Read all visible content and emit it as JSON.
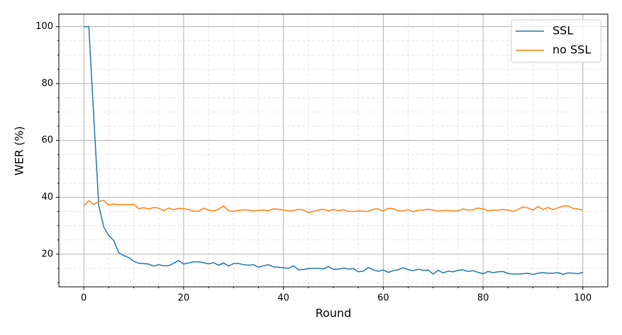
{
  "chart_data": {
    "type": "line",
    "xlabel": "Round",
    "ylabel": "WER (%)",
    "x": [
      0,
      1,
      2,
      3,
      4,
      5,
      6,
      7,
      8,
      9,
      10,
      11,
      12,
      13,
      14,
      15,
      16,
      17,
      18,
      19,
      20,
      21,
      22,
      23,
      24,
      25,
      26,
      27,
      28,
      29,
      30,
      31,
      32,
      33,
      34,
      35,
      36,
      37,
      38,
      39,
      40,
      41,
      42,
      43,
      44,
      45,
      46,
      47,
      48,
      49,
      50,
      51,
      52,
      53,
      54,
      55,
      56,
      57,
      58,
      59,
      60,
      61,
      62,
      63,
      64,
      65,
      66,
      67,
      68,
      69,
      70,
      71,
      72,
      73,
      74,
      75,
      76,
      77,
      78,
      79,
      80,
      81,
      82,
      83,
      84,
      85,
      86,
      87,
      88,
      89,
      90,
      91,
      92,
      93,
      94,
      95,
      96,
      97,
      98,
      99,
      100
    ],
    "series": [
      {
        "name": "SSL",
        "color": "#1f77b4",
        "values": [
          100,
          100,
          68,
          37,
          29.5,
          26.5,
          24.8,
          20.5,
          19.5,
          18.8,
          17.5,
          16.8,
          16.7,
          16.5,
          15.8,
          16.3,
          15.9,
          15.9,
          16.8,
          17.8,
          16.5,
          16.9,
          17.3,
          17.3,
          17.0,
          16.6,
          17.0,
          16.1,
          16.9,
          15.8,
          16.7,
          16.7,
          16.3,
          16.1,
          16.3,
          15.4,
          15.9,
          16.3,
          15.5,
          15.4,
          15.2,
          15.0,
          15.9,
          14.5,
          14.6,
          14.9,
          15.0,
          15.0,
          14.8,
          15.6,
          14.7,
          14.7,
          15.1,
          14.8,
          14.9,
          13.8,
          14.0,
          15.3,
          14.5,
          14.0,
          14.4,
          13.6,
          14.2,
          14.5,
          15.2,
          14.5,
          14.2,
          14.7,
          14.3,
          14.4,
          13.0,
          14.3,
          13.4,
          14.0,
          13.8,
          14.3,
          14.5,
          13.9,
          14.2,
          13.6,
          13.1,
          13.9,
          13.5,
          13.8,
          13.9,
          13.2,
          13.0,
          13.0,
          13.1,
          13.3,
          12.8,
          13.3,
          13.5,
          13.3,
          13.3,
          13.5,
          12.9,
          13.4,
          13.3,
          13.1,
          13.6
        ]
      },
      {
        "name": "no SSL",
        "color": "#ff7f0e",
        "values": [
          37,
          38.8,
          37.5,
          38.5,
          38.9,
          37.2,
          37.6,
          37.4,
          37.4,
          37.5,
          37.5,
          36.0,
          36.3,
          35.9,
          36.4,
          36.2,
          35.3,
          36.2,
          35.6,
          36.1,
          36.0,
          35.7,
          35.1,
          35.1,
          36.1,
          35.5,
          35.2,
          35.8,
          36.9,
          35.3,
          35.0,
          35.4,
          35.6,
          35.5,
          35.2,
          35.4,
          35.5,
          35.3,
          35.9,
          35.8,
          35.5,
          35.2,
          35.3,
          35.8,
          35.5,
          34.6,
          35.1,
          35.5,
          35.8,
          35.2,
          35.7,
          35.3,
          35.6,
          35.1,
          35.0,
          35.2,
          35.1,
          35.0,
          35.8,
          35.9,
          35.1,
          36.1,
          36.0,
          35.2,
          35.2,
          35.6,
          34.9,
          35.5,
          35.5,
          35.8,
          35.5,
          35.1,
          35.3,
          35.3,
          35.2,
          35.2,
          35.9,
          35.5,
          35.6,
          36.2,
          35.9,
          35.3,
          35.5,
          35.5,
          35.7,
          35.5,
          35.0,
          35.7,
          36.6,
          36.2,
          35.5,
          36.7,
          35.7,
          36.4,
          35.6,
          36.3,
          36.9,
          37.0,
          36.1,
          35.9,
          35.5
        ]
      }
    ],
    "xlim": [
      -5,
      105
    ],
    "ylim": [
      8.5,
      104.4
    ],
    "xticks": [
      0,
      20,
      40,
      60,
      80,
      100
    ],
    "yticks": [
      20,
      40,
      60,
      80,
      100
    ],
    "xminorticks": [
      5,
      10,
      15,
      25,
      30,
      35,
      45,
      50,
      55,
      65,
      70,
      75,
      85,
      90,
      95
    ],
    "yminorticks": [
      10,
      15,
      25,
      30,
      35,
      45,
      50,
      55,
      65,
      70,
      75,
      85,
      90,
      95
    ],
    "grid": true,
    "minor_grid": true,
    "legend": "upper right"
  }
}
